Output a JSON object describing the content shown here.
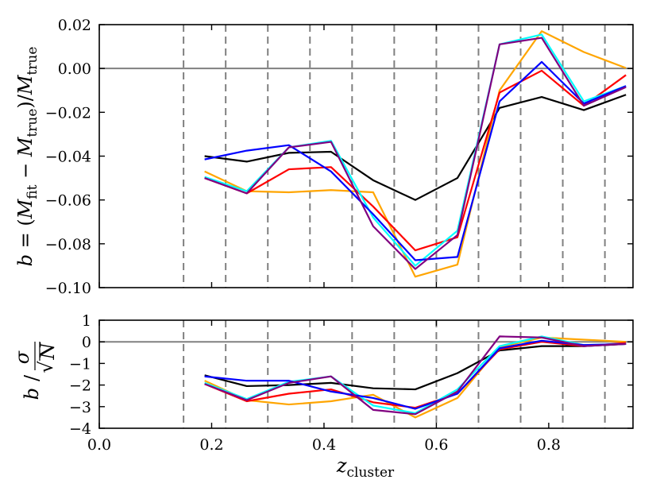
{
  "chart_data": [
    {
      "type": "line",
      "panel": "top",
      "ylabel_parts": {
        "b": "b",
        "eq": " = (",
        "M": "M",
        "fit": "fit",
        "minus": " − ",
        "true": "true",
        "close": ")/"
      },
      "ylim": [
        -0.1,
        0.02
      ],
      "yticks": [
        0.02,
        0.0,
        -0.02,
        -0.04,
        -0.06,
        -0.08,
        -0.1
      ],
      "ytick_labels": [
        "0.02",
        "0.00",
        "−0.02",
        "−0.04",
        "−0.06",
        "−0.08",
        "−0.10"
      ],
      "xlim": [
        0.0,
        0.95
      ],
      "x": [
        0.1875,
        0.2625,
        0.3375,
        0.4125,
        0.4875,
        0.5625,
        0.6375,
        0.7125,
        0.7875,
        0.8625,
        0.9375
      ],
      "series": [
        {
          "color": "#000000",
          "values": [
            -0.04,
            -0.0425,
            -0.0385,
            -0.038,
            -0.051,
            -0.06,
            -0.05,
            -0.018,
            -0.013,
            -0.019,
            -0.012
          ]
        },
        {
          "color": "#ffa500",
          "values": [
            -0.047,
            -0.056,
            -0.0565,
            -0.0555,
            -0.0565,
            -0.095,
            -0.0895,
            -0.01,
            0.017,
            0.0075,
            0.0002
          ]
        },
        {
          "color": "#ff0000",
          "values": [
            -0.05,
            -0.057,
            -0.046,
            -0.045,
            -0.063,
            -0.083,
            -0.077,
            -0.011,
            -0.001,
            -0.017,
            -0.003
          ]
        },
        {
          "color": "#00ffff",
          "values": [
            -0.0495,
            -0.056,
            -0.036,
            -0.033,
            -0.068,
            -0.09,
            -0.074,
            0.011,
            0.0155,
            -0.015,
            -0.008
          ]
        },
        {
          "color": "#0000ff",
          "values": [
            -0.0415,
            -0.0375,
            -0.035,
            -0.047,
            -0.0665,
            -0.0875,
            -0.086,
            -0.015,
            0.003,
            -0.016,
            -0.008
          ]
        },
        {
          "color": "#800080",
          "values": [
            -0.05,
            -0.057,
            -0.036,
            -0.0335,
            -0.072,
            -0.0915,
            -0.076,
            0.011,
            0.014,
            -0.017,
            -0.0085
          ]
        }
      ],
      "hline": 0.0,
      "vlines": [
        0.15,
        0.225,
        0.3,
        0.375,
        0.45,
        0.525,
        0.6,
        0.675,
        0.75,
        0.825,
        0.9
      ]
    },
    {
      "type": "line",
      "panel": "bottom",
      "ylabel_parts": {
        "b": "b",
        "slash": "/",
        "sigma": "σ",
        "sqrt": "√",
        "N": "N"
      },
      "xlabel_parts": {
        "z": "z",
        "sub": "cluster"
      },
      "ylim": [
        -4,
        1
      ],
      "yticks": [
        1,
        0,
        -1,
        -2,
        -3,
        -4
      ],
      "ytick_labels": [
        "1",
        "0",
        "−1",
        "−2",
        "−3",
        "−4"
      ],
      "xlim": [
        0.0,
        0.95
      ],
      "xticks": [
        0.0,
        0.2,
        0.4,
        0.6,
        0.8
      ],
      "xtick_labels": [
        "0.0",
        "0.2",
        "0.4",
        "0.6",
        "0.8"
      ],
      "x": [
        0.1875,
        0.2625,
        0.3375,
        0.4125,
        0.4875,
        0.5625,
        0.6375,
        0.7125,
        0.7875,
        0.8625,
        0.9375
      ],
      "series": [
        {
          "color": "#000000",
          "values": [
            -1.55,
            -2.05,
            -2.0,
            -1.9,
            -2.15,
            -2.2,
            -1.45,
            -0.4,
            -0.2,
            -0.2,
            -0.1
          ]
        },
        {
          "color": "#ffa500",
          "values": [
            -1.8,
            -2.7,
            -2.9,
            -2.75,
            -2.45,
            -3.5,
            -2.6,
            -0.25,
            0.2,
            0.1,
            0.0
          ]
        },
        {
          "color": "#ff0000",
          "values": [
            -1.95,
            -2.75,
            -2.4,
            -2.2,
            -2.8,
            -3.05,
            -2.4,
            -0.35,
            0.0,
            -0.2,
            -0.05
          ]
        },
        {
          "color": "#00ffff",
          "values": [
            -1.9,
            -2.65,
            -1.85,
            -1.6,
            -2.95,
            -3.3,
            -2.2,
            -0.2,
            0.25,
            -0.15,
            -0.1
          ]
        },
        {
          "color": "#0000ff",
          "values": [
            -1.6,
            -1.8,
            -1.8,
            -2.3,
            -2.6,
            -3.1,
            -2.4,
            -0.3,
            0.05,
            -0.15,
            -0.1
          ]
        },
        {
          "color": "#800080",
          "values": [
            -1.95,
            -2.7,
            -1.9,
            -1.6,
            -3.15,
            -3.35,
            -2.3,
            0.25,
            0.2,
            -0.2,
            -0.1
          ]
        }
      ],
      "hline": 0.0,
      "vlines": [
        0.15,
        0.225,
        0.3,
        0.375,
        0.45,
        0.525,
        0.6,
        0.675,
        0.75,
        0.825,
        0.9
      ]
    }
  ]
}
